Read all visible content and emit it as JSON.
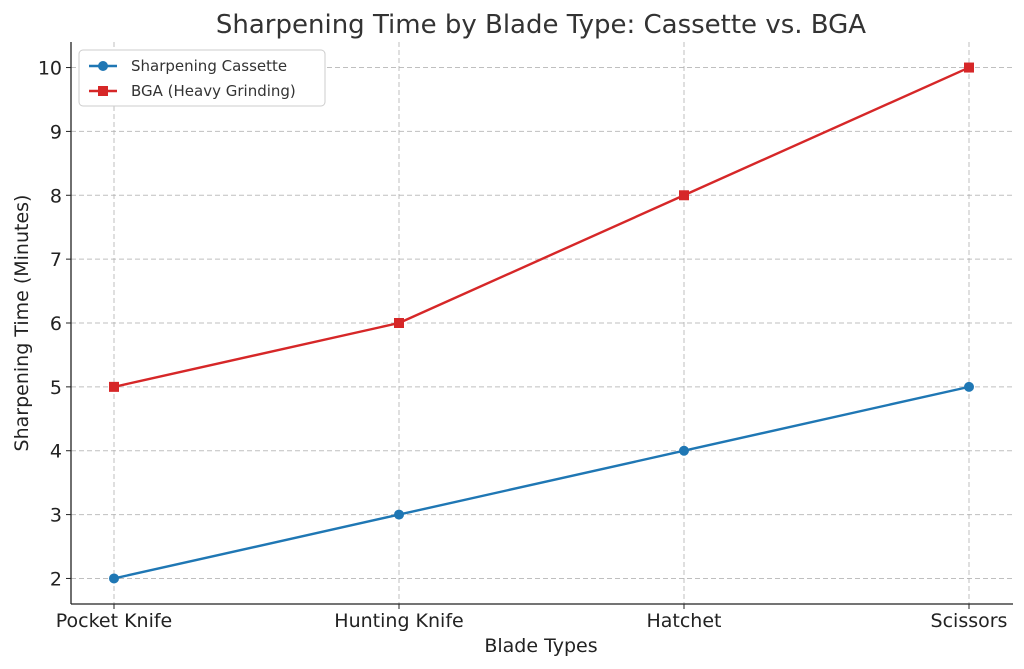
{
  "chart_data": {
    "type": "line",
    "title": "Sharpening Time by Blade Type: Cassette vs. BGA",
    "xlabel": "Blade Types",
    "ylabel": "Sharpening Time (Minutes)",
    "categories": [
      "Pocket Knife",
      "Hunting Knife",
      "Hatchet",
      "Scissors"
    ],
    "ylim": [
      1.6,
      10.4
    ],
    "yticks": [
      2,
      3,
      4,
      5,
      6,
      7,
      8,
      9,
      10
    ],
    "grid": true,
    "legend_position": "top-left",
    "series": [
      {
        "name": "Sharpening Cassette",
        "values": [
          2,
          3,
          4,
          5
        ],
        "color": "#1f77b4",
        "marker": "circle"
      },
      {
        "name": "BGA (Heavy Grinding)",
        "values": [
          5,
          6,
          8,
          10
        ],
        "color": "#d62728",
        "marker": "square"
      }
    ]
  }
}
